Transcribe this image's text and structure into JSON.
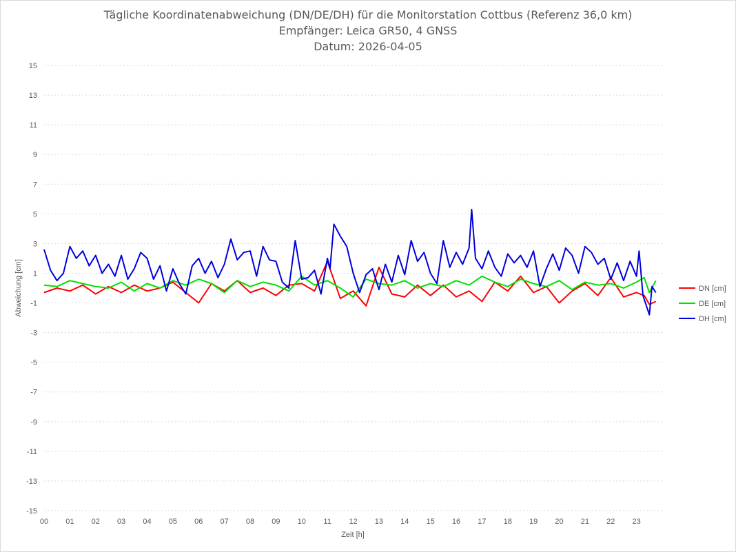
{
  "chart_data": {
    "type": "line",
    "title_lines": [
      "Tägliche Koordinatenabweichung (DN/DE/DH) für die Monitorstation Cottbus (Referenz 36,0 km)",
      "Empfänger: Leica GR50, 4 GNSS",
      "Datum: 2026-04-05"
    ],
    "xlabel": "Zeit [h]",
    "ylabel": "Abweichung [cm]",
    "xlim": [
      0,
      24
    ],
    "ylim": [
      -15,
      15
    ],
    "x_ticks": [
      "00",
      "01",
      "02",
      "03",
      "04",
      "05",
      "06",
      "07",
      "08",
      "09",
      "10",
      "11",
      "12",
      "13",
      "14",
      "15",
      "16",
      "17",
      "18",
      "19",
      "20",
      "21",
      "22",
      "23"
    ],
    "y_ticks": [
      15,
      13,
      11,
      9,
      7,
      5,
      3,
      1,
      -1,
      -3,
      -5,
      -7,
      -9,
      -11,
      -13,
      -15
    ],
    "grid": "horizontal-dotted",
    "legend_position": "right",
    "series": [
      {
        "name": "DN [cm]",
        "color": "#ff0000",
        "x": [
          0,
          0.5,
          1,
          1.5,
          2,
          2.5,
          3,
          3.5,
          4,
          4.5,
          5,
          5.5,
          6,
          6.5,
          7,
          7.5,
          8,
          8.5,
          9,
          9.5,
          10,
          10.5,
          11,
          11.2,
          11.5,
          12,
          12.5,
          13,
          13.5,
          14,
          14.5,
          15,
          15.5,
          16,
          16.5,
          17,
          17.5,
          18,
          18.5,
          19,
          19.5,
          20,
          20.5,
          21,
          21.5,
          22,
          22.5,
          23,
          23.3,
          23.5,
          23.75
        ],
        "values": [
          -0.3,
          0,
          -0.2,
          0.2,
          -0.4,
          0.1,
          -0.3,
          0.2,
          -0.2,
          0,
          0.4,
          -0.3,
          -1.0,
          0.3,
          -0.2,
          0.5,
          -0.3,
          0,
          -0.5,
          0.2,
          0.3,
          -0.2,
          1.8,
          0.8,
          -0.7,
          -0.2,
          -1.2,
          1.4,
          -0.4,
          -0.6,
          0.2,
          -0.5,
          0.2,
          -0.6,
          -0.2,
          -0.9,
          0.4,
          -0.2,
          0.8,
          -0.3,
          0.1,
          -1.0,
          -0.2,
          0.3,
          -0.5,
          0.7,
          -0.6,
          -0.3,
          -0.5,
          -1.1,
          -0.9
        ]
      },
      {
        "name": "DE [cm]",
        "color": "#00e000",
        "x": [
          0,
          0.5,
          1,
          1.5,
          2,
          2.5,
          3,
          3.5,
          4,
          4.5,
          5,
          5.5,
          6,
          6.5,
          7,
          7.5,
          8,
          8.5,
          9,
          9.5,
          10,
          10.5,
          11,
          11.5,
          12,
          12.5,
          13,
          13.5,
          14,
          14.5,
          15,
          15.5,
          16,
          16.5,
          17,
          17.5,
          18,
          18.5,
          19,
          19.5,
          20,
          20.5,
          21,
          21.5,
          22,
          22.5,
          23,
          23.3,
          23.5,
          23.75
        ],
        "values": [
          0.2,
          0.1,
          0.5,
          0.3,
          0.1,
          0.0,
          0.4,
          -0.2,
          0.3,
          0.0,
          0.5,
          0.2,
          0.6,
          0.3,
          -0.3,
          0.5,
          0.1,
          0.4,
          0.2,
          -0.2,
          0.8,
          0.2,
          0.5,
          0.0,
          -0.6,
          0.6,
          0.3,
          0.2,
          0.5,
          0.0,
          0.3,
          0.1,
          0.5,
          0.2,
          0.8,
          0.4,
          0.1,
          0.6,
          0.3,
          0.1,
          0.5,
          -0.1,
          0.4,
          0.2,
          0.3,
          0.0,
          0.4,
          0.7,
          -0.3,
          0.5
        ]
      },
      {
        "name": "DH [cm]",
        "color": "#0000dd",
        "x": [
          0,
          0.25,
          0.5,
          0.75,
          1,
          1.25,
          1.5,
          1.75,
          2,
          2.25,
          2.5,
          2.75,
          3,
          3.25,
          3.5,
          3.75,
          4,
          4.25,
          4.5,
          4.75,
          5,
          5.25,
          5.5,
          5.75,
          6,
          6.25,
          6.5,
          6.75,
          7,
          7.25,
          7.5,
          7.75,
          8,
          8.25,
          8.5,
          8.75,
          9,
          9.25,
          9.5,
          9.75,
          10,
          10.25,
          10.5,
          10.75,
          11,
          11.1,
          11.25,
          11.5,
          11.75,
          12,
          12.25,
          12.5,
          12.75,
          13,
          13.25,
          13.5,
          13.75,
          14,
          14.25,
          14.5,
          14.75,
          15,
          15.25,
          15.5,
          15.75,
          16,
          16.25,
          16.5,
          16.6,
          16.75,
          17,
          17.25,
          17.5,
          17.75,
          18,
          18.25,
          18.5,
          18.75,
          19,
          19.25,
          19.5,
          19.75,
          20,
          20.25,
          20.5,
          20.75,
          21,
          21.25,
          21.5,
          21.75,
          22,
          22.25,
          22.5,
          22.75,
          23,
          23.1,
          23.25,
          23.5,
          23.6,
          23.75
        ],
        "values": [
          2.6,
          1.2,
          0.5,
          1.0,
          2.8,
          2.0,
          2.5,
          1.5,
          2.2,
          1.0,
          1.6,
          0.8,
          2.2,
          0.6,
          1.3,
          2.4,
          2.0,
          0.6,
          1.5,
          -0.2,
          1.3,
          0.3,
          -0.4,
          1.5,
          2.0,
          1.0,
          1.8,
          0.7,
          1.6,
          3.3,
          1.9,
          2.4,
          2.5,
          0.8,
          2.8,
          1.9,
          1.8,
          0.4,
          0.0,
          3.2,
          0.6,
          0.7,
          1.2,
          -0.4,
          2.0,
          1.3,
          4.3,
          3.5,
          2.8,
          1.0,
          -0.3,
          0.9,
          1.3,
          -0.1,
          1.6,
          0.4,
          2.2,
          0.9,
          3.2,
          1.8,
          2.4,
          1.0,
          0.3,
          3.2,
          1.4,
          2.4,
          1.6,
          2.7,
          5.3,
          2.0,
          1.3,
          2.5,
          1.4,
          0.8,
          2.3,
          1.7,
          2.2,
          1.4,
          2.5,
          0.1,
          1.3,
          2.3,
          1.2,
          2.7,
          2.2,
          1.0,
          2.8,
          2.4,
          1.6,
          2.0,
          0.6,
          1.7,
          0.5,
          1.8,
          0.8,
          2.5,
          -0.5,
          -1.8,
          0.1,
          -0.3
        ]
      }
    ]
  }
}
